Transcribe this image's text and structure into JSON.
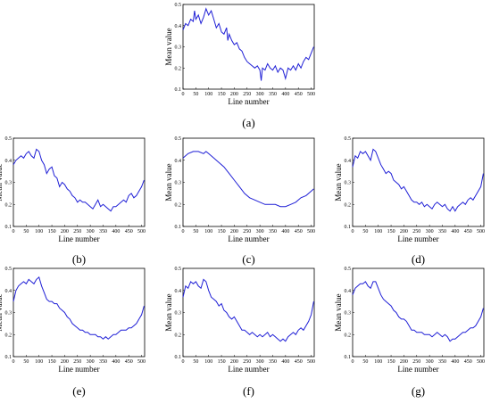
{
  "chart_data": [
    {
      "panel": "(a)",
      "type": "line",
      "xlabel": "Line number",
      "ylabel": "Mean value",
      "xlim": [
        0,
        512
      ],
      "ylim": [
        0.1,
        0.5
      ],
      "xticks": [
        0,
        50,
        100,
        150,
        200,
        250,
        300,
        350,
        400,
        450,
        500
      ],
      "yticks": [
        0.1,
        0.2,
        0.3,
        0.4,
        0.5
      ],
      "ytick_labels": [
        "0.1",
        "0.2",
        "0.3",
        "0.4",
        "0.5"
      ],
      "line_color": "#1f1fd6",
      "series": [
        {
          "x": [
            0,
            10,
            20,
            30,
            40,
            45,
            50,
            60,
            70,
            80,
            90,
            100,
            110,
            120,
            130,
            140,
            150,
            160,
            170,
            175,
            180,
            190,
            200,
            210,
            220,
            230,
            240,
            250,
            260,
            270,
            280,
            290,
            300,
            305,
            310,
            320,
            330,
            340,
            350,
            360,
            370,
            380,
            390,
            400,
            410,
            420,
            430,
            440,
            450,
            460,
            470,
            480,
            490,
            500,
            510
          ],
          "y": [
            0.38,
            0.41,
            0.4,
            0.43,
            0.42,
            0.47,
            0.43,
            0.45,
            0.41,
            0.44,
            0.48,
            0.45,
            0.47,
            0.43,
            0.39,
            0.41,
            0.37,
            0.36,
            0.39,
            0.33,
            0.36,
            0.33,
            0.31,
            0.32,
            0.29,
            0.28,
            0.25,
            0.23,
            0.22,
            0.21,
            0.2,
            0.21,
            0.19,
            0.14,
            0.2,
            0.19,
            0.22,
            0.2,
            0.19,
            0.21,
            0.18,
            0.2,
            0.19,
            0.15,
            0.2,
            0.19,
            0.21,
            0.19,
            0.22,
            0.2,
            0.23,
            0.25,
            0.24,
            0.27,
            0.3
          ]
        }
      ]
    },
    {
      "panel": "(b)",
      "type": "line",
      "xlabel": "Line number",
      "ylabel": "Mean value",
      "xlim": [
        0,
        512
      ],
      "ylim": [
        0.1,
        0.5
      ],
      "xticks": [
        0,
        50,
        100,
        150,
        200,
        250,
        300,
        350,
        400,
        450,
        500
      ],
      "yticks": [
        0.1,
        0.2,
        0.3,
        0.4,
        0.5
      ],
      "ytick_labels": [
        "0.1",
        "0.2",
        "0.3",
        "0.4",
        "0.5"
      ],
      "line_color": "#1f1fd6",
      "series": [
        {
          "x": [
            0,
            10,
            20,
            30,
            40,
            50,
            60,
            70,
            80,
            90,
            100,
            110,
            120,
            130,
            140,
            150,
            160,
            170,
            180,
            190,
            200,
            210,
            220,
            230,
            240,
            250,
            260,
            270,
            280,
            290,
            300,
            310,
            320,
            330,
            340,
            350,
            360,
            370,
            380,
            390,
            400,
            410,
            420,
            430,
            440,
            450,
            460,
            470,
            480,
            490,
            500,
            510
          ],
          "y": [
            0.38,
            0.4,
            0.41,
            0.42,
            0.41,
            0.43,
            0.44,
            0.42,
            0.41,
            0.45,
            0.44,
            0.4,
            0.38,
            0.34,
            0.36,
            0.37,
            0.33,
            0.32,
            0.28,
            0.3,
            0.29,
            0.27,
            0.26,
            0.24,
            0.23,
            0.21,
            0.22,
            0.21,
            0.21,
            0.2,
            0.19,
            0.18,
            0.2,
            0.22,
            0.19,
            0.2,
            0.19,
            0.18,
            0.17,
            0.19,
            0.19,
            0.2,
            0.21,
            0.22,
            0.21,
            0.24,
            0.25,
            0.23,
            0.24,
            0.26,
            0.28,
            0.31
          ]
        }
      ]
    },
    {
      "panel": "(c)",
      "type": "line",
      "xlabel": "Line number",
      "ylabel": "Mean value",
      "xlim": [
        0,
        512
      ],
      "ylim": [
        0.1,
        0.5
      ],
      "xticks": [
        0,
        50,
        100,
        150,
        200,
        250,
        300,
        350,
        400,
        450,
        500
      ],
      "yticks": [
        0.1,
        0.2,
        0.3,
        0.4,
        0.5
      ],
      "ytick_labels": [
        "0.1",
        "0.2",
        "0.3",
        "0.4",
        "0.5"
      ],
      "line_color": "#1f1fd6",
      "series": [
        {
          "x": [
            0,
            20,
            40,
            60,
            80,
            90,
            100,
            120,
            140,
            160,
            180,
            200,
            220,
            240,
            260,
            280,
            300,
            320,
            340,
            360,
            380,
            400,
            420,
            440,
            460,
            480,
            500,
            510
          ],
          "y": [
            0.41,
            0.43,
            0.44,
            0.44,
            0.43,
            0.44,
            0.43,
            0.41,
            0.39,
            0.37,
            0.34,
            0.31,
            0.28,
            0.25,
            0.23,
            0.22,
            0.21,
            0.2,
            0.2,
            0.2,
            0.19,
            0.19,
            0.2,
            0.21,
            0.23,
            0.24,
            0.26,
            0.27
          ]
        }
      ]
    },
    {
      "panel": "(d)",
      "type": "line",
      "xlabel": "Line number",
      "ylabel": "Mean value",
      "xlim": [
        0,
        512
      ],
      "ylim": [
        0.1,
        0.5
      ],
      "xticks": [
        0,
        50,
        100,
        150,
        200,
        250,
        300,
        350,
        400,
        450,
        500
      ],
      "yticks": [
        0.1,
        0.2,
        0.3,
        0.4,
        0.5
      ],
      "ytick_labels": [
        "0.1",
        "0.2",
        "0.3",
        "0.4",
        "0.5"
      ],
      "line_color": "#1f1fd6",
      "series": [
        {
          "x": [
            0,
            10,
            20,
            30,
            40,
            50,
            60,
            70,
            80,
            90,
            100,
            110,
            120,
            130,
            140,
            150,
            160,
            170,
            180,
            190,
            200,
            210,
            220,
            230,
            240,
            250,
            260,
            270,
            280,
            290,
            300,
            310,
            320,
            330,
            340,
            350,
            360,
            370,
            380,
            390,
            400,
            410,
            420,
            430,
            440,
            450,
            460,
            470,
            480,
            490,
            500,
            510
          ],
          "y": [
            0.37,
            0.42,
            0.41,
            0.44,
            0.43,
            0.44,
            0.42,
            0.4,
            0.45,
            0.44,
            0.41,
            0.38,
            0.36,
            0.34,
            0.35,
            0.34,
            0.31,
            0.3,
            0.29,
            0.27,
            0.28,
            0.26,
            0.24,
            0.22,
            0.21,
            0.21,
            0.2,
            0.21,
            0.19,
            0.2,
            0.19,
            0.18,
            0.2,
            0.21,
            0.2,
            0.19,
            0.2,
            0.18,
            0.17,
            0.19,
            0.17,
            0.19,
            0.2,
            0.21,
            0.2,
            0.22,
            0.23,
            0.22,
            0.24,
            0.26,
            0.28,
            0.34
          ]
        }
      ]
    },
    {
      "panel": "(e)",
      "type": "line",
      "xlabel": "Line number",
      "ylabel": "Mean value",
      "xlim": [
        0,
        512
      ],
      "ylim": [
        0.1,
        0.5
      ],
      "xticks": [
        0,
        50,
        100,
        150,
        200,
        250,
        300,
        350,
        400,
        450,
        500
      ],
      "yticks": [
        0.1,
        0.2,
        0.3,
        0.4,
        0.5
      ],
      "ytick_labels": [
        "0.1",
        "0.2",
        "0.3",
        "0.4",
        "0.5"
      ],
      "line_color": "#1f1fd6",
      "series": [
        {
          "x": [
            0,
            10,
            20,
            30,
            40,
            50,
            60,
            70,
            80,
            90,
            100,
            110,
            120,
            130,
            140,
            150,
            160,
            170,
            180,
            190,
            200,
            210,
            220,
            230,
            240,
            250,
            260,
            270,
            280,
            290,
            300,
            310,
            320,
            330,
            340,
            350,
            360,
            370,
            380,
            390,
            400,
            410,
            420,
            430,
            440,
            450,
            460,
            470,
            480,
            490,
            500,
            510
          ],
          "y": [
            0.35,
            0.4,
            0.42,
            0.43,
            0.44,
            0.43,
            0.45,
            0.44,
            0.43,
            0.45,
            0.46,
            0.42,
            0.39,
            0.36,
            0.35,
            0.35,
            0.34,
            0.34,
            0.32,
            0.31,
            0.3,
            0.28,
            0.27,
            0.25,
            0.24,
            0.23,
            0.22,
            0.22,
            0.21,
            0.21,
            0.2,
            0.2,
            0.2,
            0.19,
            0.19,
            0.18,
            0.19,
            0.18,
            0.19,
            0.2,
            0.2,
            0.21,
            0.22,
            0.22,
            0.22,
            0.23,
            0.23,
            0.24,
            0.25,
            0.27,
            0.29,
            0.33
          ]
        }
      ]
    },
    {
      "panel": "(f)",
      "type": "line",
      "xlabel": "Line number",
      "ylabel": "Mean value",
      "xlim": [
        0,
        512
      ],
      "ylim": [
        0.1,
        0.5
      ],
      "xticks": [
        0,
        50,
        100,
        150,
        200,
        250,
        300,
        350,
        400,
        450,
        500
      ],
      "yticks": [
        0.1,
        0.2,
        0.3,
        0.4,
        0.5
      ],
      "ytick_labels": [
        "0.1",
        "0.2",
        "0.3",
        "0.4",
        "0.5"
      ],
      "line_color": "#1f1fd6",
      "series": [
        {
          "x": [
            0,
            10,
            20,
            30,
            40,
            50,
            60,
            70,
            80,
            90,
            100,
            110,
            120,
            130,
            140,
            150,
            160,
            170,
            180,
            190,
            200,
            210,
            220,
            230,
            240,
            250,
            260,
            270,
            280,
            290,
            300,
            310,
            320,
            330,
            340,
            350,
            360,
            370,
            380,
            390,
            400,
            410,
            420,
            430,
            440,
            450,
            460,
            470,
            480,
            490,
            500,
            510
          ],
          "y": [
            0.37,
            0.42,
            0.41,
            0.44,
            0.43,
            0.44,
            0.42,
            0.41,
            0.45,
            0.44,
            0.4,
            0.37,
            0.36,
            0.35,
            0.33,
            0.34,
            0.31,
            0.3,
            0.28,
            0.27,
            0.28,
            0.26,
            0.24,
            0.22,
            0.22,
            0.21,
            0.2,
            0.21,
            0.2,
            0.19,
            0.2,
            0.19,
            0.2,
            0.21,
            0.19,
            0.2,
            0.19,
            0.18,
            0.17,
            0.18,
            0.17,
            0.19,
            0.2,
            0.21,
            0.2,
            0.22,
            0.23,
            0.22,
            0.24,
            0.26,
            0.29,
            0.35
          ]
        }
      ]
    },
    {
      "panel": "(g)",
      "type": "line",
      "xlabel": "Line number",
      "ylabel": "Mean value",
      "xlim": [
        0,
        512
      ],
      "ylim": [
        0.1,
        0.5
      ],
      "xticks": [
        0,
        50,
        100,
        150,
        200,
        250,
        300,
        350,
        400,
        450,
        500
      ],
      "yticks": [
        0.1,
        0.2,
        0.3,
        0.4,
        0.5
      ],
      "ytick_labels": [
        "0.1",
        "0.2",
        "0.3",
        "0.4",
        "0.5"
      ],
      "line_color": "#1f1fd6",
      "series": [
        {
          "x": [
            0,
            10,
            20,
            30,
            40,
            50,
            60,
            70,
            80,
            90,
            100,
            110,
            120,
            130,
            140,
            150,
            160,
            170,
            180,
            190,
            200,
            210,
            220,
            230,
            240,
            250,
            260,
            270,
            280,
            290,
            300,
            310,
            320,
            330,
            340,
            350,
            360,
            370,
            380,
            390,
            400,
            410,
            420,
            430,
            440,
            450,
            460,
            470,
            480,
            490,
            500,
            510
          ],
          "y": [
            0.38,
            0.41,
            0.42,
            0.43,
            0.43,
            0.44,
            0.42,
            0.41,
            0.44,
            0.44,
            0.41,
            0.38,
            0.36,
            0.35,
            0.34,
            0.33,
            0.31,
            0.3,
            0.28,
            0.27,
            0.27,
            0.26,
            0.24,
            0.22,
            0.22,
            0.21,
            0.21,
            0.21,
            0.2,
            0.2,
            0.2,
            0.19,
            0.2,
            0.21,
            0.2,
            0.19,
            0.2,
            0.19,
            0.17,
            0.18,
            0.18,
            0.19,
            0.2,
            0.21,
            0.21,
            0.22,
            0.23,
            0.23,
            0.24,
            0.26,
            0.28,
            0.32
          ]
        }
      ]
    }
  ]
}
